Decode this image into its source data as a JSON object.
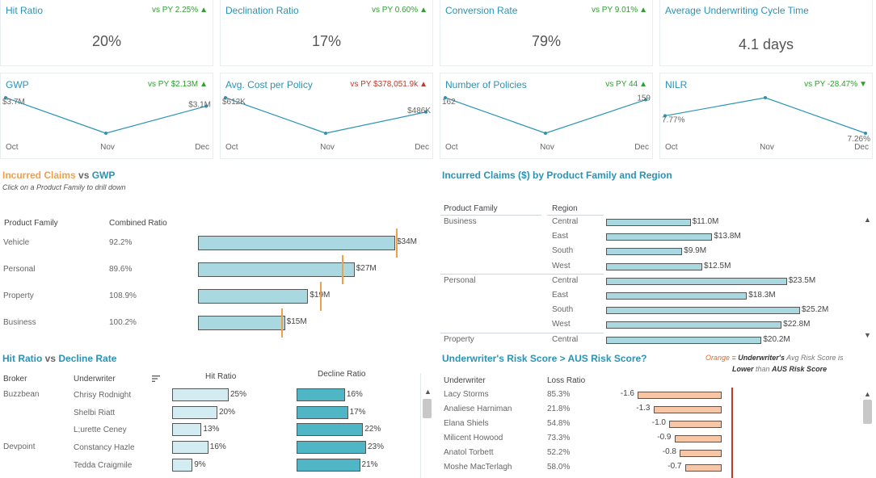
{
  "kpis": [
    {
      "title": "Hit Ratio",
      "delta": "vs PY 2.25%",
      "delta_arrow": "▲",
      "delta_dir": "up",
      "value": "20%"
    },
    {
      "title": "Declination Ratio",
      "delta": "vs PY  0.60%",
      "delta_arrow": "▲",
      "delta_dir": "up",
      "value": "17%"
    },
    {
      "title": "Conversion Rate",
      "delta": "vs PY 9.01%",
      "delta_arrow": "▲",
      "delta_dir": "up",
      "value": "79%"
    },
    {
      "title": "Average Underwriting Cycle Time",
      "delta": "",
      "delta_arrow": "",
      "delta_dir": "up",
      "value": "4.1 days"
    }
  ],
  "sparks": [
    {
      "title": "GWP",
      "delta": "vs PY  $2.13M",
      "delta_arrow": "▲",
      "delta_dir": "up",
      "months": [
        "Oct",
        "Nov",
        "Dec"
      ],
      "values": [
        3.7,
        1.2,
        3.1
      ],
      "start_label": "$3.7M",
      "end_label": "$3.1M"
    },
    {
      "title": "Avg. Cost per Policy",
      "delta": "vs PY $378,051.9k",
      "delta_arrow": "▲",
      "delta_dir": "down",
      "months": [
        "Oct",
        "Nov",
        "Dec"
      ],
      "values": [
        612,
        300,
        486
      ],
      "start_label": "$612K",
      "end_label": "$486K"
    },
    {
      "title": "Number of Policies",
      "delta": "vs PY 44",
      "delta_arrow": "▲",
      "delta_dir": "up",
      "months": [
        "Oct",
        "Nov",
        "Dec"
      ],
      "values": [
        162,
        110,
        159
      ],
      "start_label": "162",
      "end_label": "159"
    },
    {
      "title": "NILR",
      "delta": "vs PY -28.47%",
      "delta_arrow": "▼",
      "delta_dir": "up",
      "months": [
        "Oct",
        "Nov",
        "Dec"
      ],
      "values": [
        7.77,
        8.3,
        7.26
      ],
      "start_label": "7.77%",
      "end_label": "7.26%"
    }
  ],
  "incurred_vs_gwp": {
    "title_a": "Incurred Claims",
    "title_vs": " vs ",
    "title_b": "GWP",
    "subtitle": "Click on a Product Family to drill down",
    "col_family": "Product Family",
    "col_ratio": "Combined Ratio",
    "rows": [
      {
        "family": "Vehicle",
        "ratio": "92.2%",
        "claims": 34,
        "label": "$34M",
        "gwp": 34.2
      },
      {
        "family": "Personal",
        "ratio": "89.6%",
        "claims": 27,
        "label": "$27M",
        "gwp": 24.8
      },
      {
        "family": "Property",
        "ratio": "108.9%",
        "claims": 19,
        "label": "$19M",
        "gwp": 21
      },
      {
        "family": "Business",
        "ratio": "100.2%",
        "claims": 15,
        "label": "$15M",
        "gwp": 14.4
      }
    ]
  },
  "claims_by_region": {
    "title": "Incurred Claims ($) by  Product Family  and Region",
    "col_family": "Product Family",
    "col_region": "Region",
    "rows": [
      {
        "family": "Business",
        "region": "Central",
        "value": 11.0,
        "label": "$11.0M"
      },
      {
        "family": "",
        "region": "East",
        "value": 13.8,
        "label": "$13.8M"
      },
      {
        "family": "",
        "region": "South",
        "value": 9.9,
        "label": "$9.9M"
      },
      {
        "family": "",
        "region": "West",
        "value": 12.5,
        "label": "$12.5M"
      },
      {
        "family": "Personal",
        "region": "Central",
        "value": 23.5,
        "label": "$23.5M"
      },
      {
        "family": "",
        "region": "East",
        "value": 18.3,
        "label": "$18.3M"
      },
      {
        "family": "",
        "region": "South",
        "value": 25.2,
        "label": "$25.2M"
      },
      {
        "family": "",
        "region": "West",
        "value": 22.8,
        "label": "$22.8M"
      },
      {
        "family": "Property",
        "region": "Central",
        "value": 20.2,
        "label": "$20.2M"
      }
    ]
  },
  "hit_vs_decline": {
    "title_a": "Hit Ratio",
    "title_vs": " vs ",
    "title_b": "Decline Rate",
    "col_broker": "Broker",
    "col_underwriter": "Underwriter",
    "col_hit": "Hit Ratio",
    "col_decline": "Decline Ratio",
    "rows": [
      {
        "broker": "Buzzbean",
        "underwriter": "Chrisy Rodnight",
        "hit": 25,
        "hit_label": "25%",
        "decline": 16,
        "decline_label": "16%"
      },
      {
        "broker": "",
        "underwriter": "Shelbi Riatt",
        "hit": 20,
        "hit_label": "20%",
        "decline": 17,
        "decline_label": "17%"
      },
      {
        "broker": "",
        "underwriter": "L;urette Ceney",
        "hit": 13,
        "hit_label": "13%",
        "decline": 22,
        "decline_label": "22%"
      },
      {
        "broker": "Devpoint",
        "underwriter": "Constancy Hazle",
        "hit": 16,
        "hit_label": "16%",
        "decline": 23,
        "decline_label": "23%"
      },
      {
        "broker": "",
        "underwriter": "Tedda Craigmile",
        "hit": 9,
        "hit_label": "9%",
        "decline": 21,
        "decline_label": "21%"
      }
    ]
  },
  "risk_score": {
    "title": "Underwriter's Risk Score > AUS Risk Score?",
    "legend_orange": "Orange",
    "legend_eq": " = ",
    "legend_uw": "Underwriter's",
    "legend_avg": " Avg Risk Score is",
    "legend_lower": "Lower",
    "legend_than": " than ",
    "legend_aus": "AUS Risk Score",
    "col_underwriter": "Underwriter",
    "col_loss": "Loss Ratio",
    "rows": [
      {
        "underwriter": "Lacy Storms",
        "loss": "85.3%",
        "diff": -1.6,
        "label": "-1.6"
      },
      {
        "underwriter": "Analiese Harniman",
        "loss": "21.8%",
        "diff": -1.3,
        "label": "-1.3"
      },
      {
        "underwriter": "Elana Shiels",
        "loss": "54.8%",
        "diff": -1.0,
        "label": "-1.0"
      },
      {
        "underwriter": "Milicent Howood",
        "loss": "73.3%",
        "diff": -0.9,
        "label": "-0.9"
      },
      {
        "underwriter": "Anatol Torbett",
        "loss": "52.2%",
        "diff": -0.8,
        "label": "-0.8"
      },
      {
        "underwriter": "Moshe MacTerlagh",
        "loss": "58.0%",
        "diff": -0.7,
        "label": "-0.7"
      }
    ]
  },
  "colors": {
    "teal": "#2a93b5",
    "bar_light": "#a9d8e0",
    "bar_pale": "#d3ecf1",
    "bar_dark": "#4fb6c5",
    "orange": "#f0a04b",
    "risk_bar": "#f7c6a6",
    "ref_line": "#c0392b"
  }
}
